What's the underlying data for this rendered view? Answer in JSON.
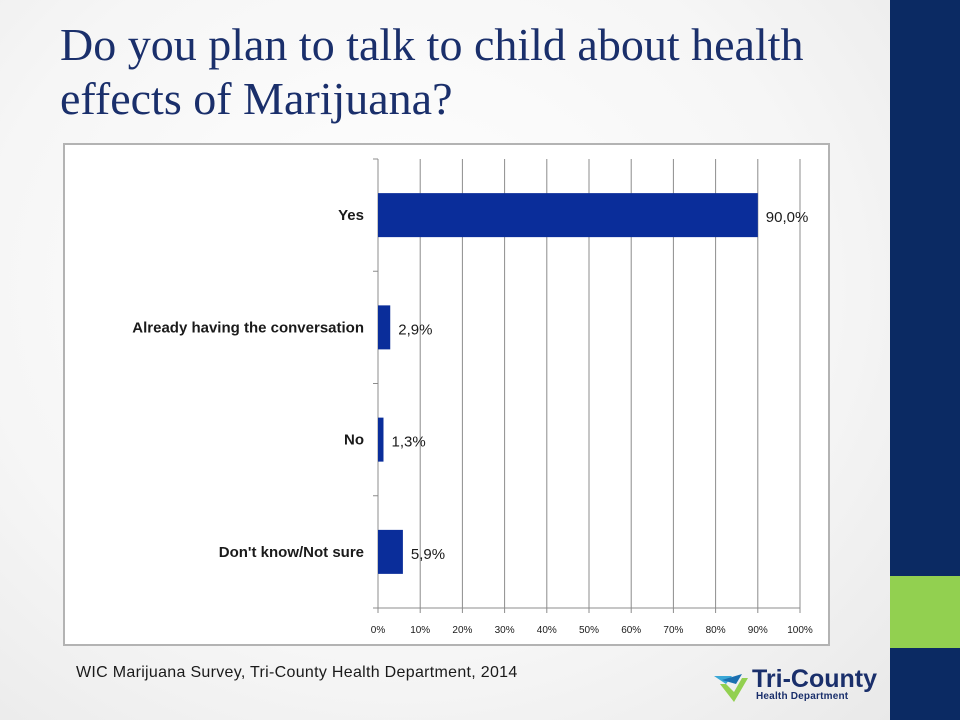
{
  "slide": {
    "title": "Do you plan to talk to child about health effects of Marijuana?",
    "source": "WIC Marijuana Survey, Tri-County Health Department, 2014"
  },
  "logo": {
    "main_text": "Tri-County",
    "sub_text": "Health Department"
  },
  "colors": {
    "bar": "#0a2d9a",
    "title": "#1a2f6b",
    "sidebar_blue": "#0b2a63",
    "sidebar_green": "#92d050"
  },
  "chart_data": {
    "type": "bar",
    "orientation": "horizontal",
    "title": "",
    "xlabel": "",
    "ylabel": "",
    "xlim": [
      0,
      100
    ],
    "grid": true,
    "categories": [
      "Yes",
      "Already having the conversation",
      "No",
      "Don't know/Not sure"
    ],
    "values": [
      90.0,
      2.9,
      1.3,
      5.9
    ],
    "data_labels": [
      "90,0%",
      "2,9%",
      "1,3%",
      "5,9%"
    ],
    "x_ticks": [
      "0%",
      "10%",
      "20%",
      "30%",
      "40%",
      "50%",
      "60%",
      "70%",
      "80%",
      "90%",
      "100%"
    ]
  }
}
